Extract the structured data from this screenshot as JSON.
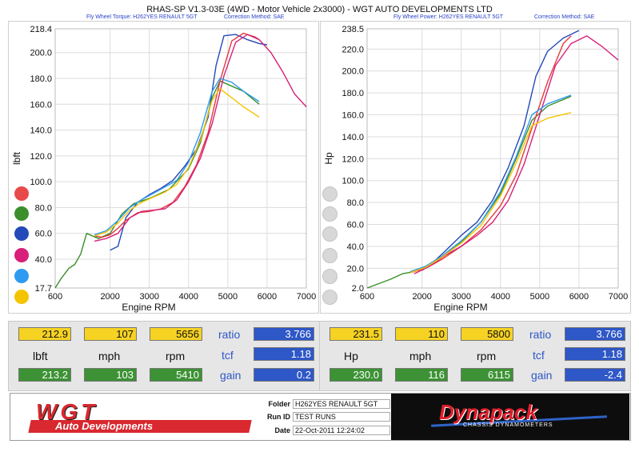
{
  "header": {
    "title": "RHAS-SP V1.3-03E  (4WD - Motor Vehicle 2x3000) - WGT AUTO DEVELOPMENTS LTD",
    "left_sub_a": "Fly Wheel Torque: H262YES RENAULT 5GT",
    "left_sub_b": "Correction Method: SAE",
    "right_sub_a": "Fly Wheel Power: H262YES RENAULT 5GT",
    "right_sub_b": "Correction Method: SAE"
  },
  "colors": {
    "red": "#e53a3a",
    "green": "#3a8f2b",
    "blue": "#2449b8",
    "magenta": "#d81f7a",
    "cyan": "#2f9bf0",
    "yellow": "#f5c400"
  },
  "chart_data": [
    {
      "type": "line",
      "xlabel": "Engine RPM",
      "ylabel": "lbft",
      "xlim": [
        600,
        7000
      ],
      "ylim": [
        17.7,
        218.4
      ],
      "x_ticks": [
        "600",
        "2000",
        "3000",
        "4000",
        "5000",
        "6000",
        "7000"
      ],
      "x_tick_values": [
        600,
        2000,
        3000,
        4000,
        5000,
        6000,
        7000
      ],
      "y_ticks": [
        "218.4",
        "200.0",
        "180.0",
        "160.0",
        "140.0",
        "120.0",
        "100.0",
        "80.0",
        "60.0",
        "40.0",
        "17.7"
      ],
      "y_tick_values": [
        218.4,
        200,
        180,
        160,
        140,
        120,
        100,
        80,
        60,
        40,
        17.7
      ],
      "grid": true,
      "series": [
        {
          "color": "#2449b8",
          "x": [
            2000,
            2200,
            2400,
            2700,
            3000,
            3300,
            3600,
            3900,
            4200,
            4500,
            4700,
            4900,
            5200,
            5500,
            5800,
            6000
          ],
          "y": [
            47,
            50,
            72,
            84,
            90,
            95,
            101,
            112,
            125,
            150,
            190,
            213,
            214,
            210,
            207,
            206
          ]
        },
        {
          "color": "#3a8f2b",
          "x": [
            600,
            750,
            950,
            1100,
            1250,
            1400,
            1700,
            2000,
            2300,
            2600,
            3000,
            3500,
            4000,
            4300,
            4600,
            4800,
            5100,
            5400,
            5800
          ],
          "y": [
            17.7,
            25,
            33,
            36,
            44,
            60,
            56,
            60,
            75,
            83,
            87,
            94,
            110,
            130,
            165,
            178,
            174,
            170,
            160
          ]
        },
        {
          "color": "#e53a3a",
          "x": [
            1600,
            1800,
            2000,
            2200,
            2400,
            2700,
            3000,
            3300,
            3600,
            3900,
            4200,
            4500,
            4800,
            5100,
            5400,
            5700,
            5800
          ],
          "y": [
            58,
            57,
            59,
            64,
            70,
            76,
            77,
            79,
            84,
            96,
            113,
            138,
            178,
            209,
            215,
            212,
            210
          ]
        },
        {
          "color": "#d81f7a",
          "x": [
            1600,
            1900,
            2200,
            2500,
            2800,
            3100,
            3400,
            3700,
            4000,
            4300,
            4600,
            4900,
            5200,
            5500,
            5800,
            6100,
            6400,
            6700,
            7000
          ],
          "y": [
            54,
            56,
            60,
            72,
            77,
            78,
            79,
            86,
            100,
            118,
            145,
            182,
            208,
            214,
            210,
            200,
            185,
            168,
            158
          ]
        },
        {
          "color": "#2f9bf0",
          "x": [
            1600,
            1900,
            2200,
            2500,
            2800,
            3100,
            3400,
            3700,
            4000,
            4300,
            4600,
            4800,
            5100,
            5400,
            5800
          ],
          "y": [
            59,
            62,
            70,
            80,
            86,
            91,
            96,
            101,
            115,
            138,
            170,
            180,
            177,
            170,
            162
          ]
        },
        {
          "color": "#f5c400",
          "x": [
            1600,
            1900,
            2200,
            2500,
            2800,
            3100,
            3400,
            3700,
            4000,
            4300,
            4600,
            4800,
            5100,
            5400,
            5800
          ],
          "y": [
            58,
            61,
            68,
            78,
            84,
            88,
            92,
            98,
            111,
            132,
            163,
            172,
            165,
            158,
            150
          ]
        }
      ]
    },
    {
      "type": "line",
      "xlabel": "Engine RPM",
      "ylabel": "Hp",
      "xlim": [
        600,
        7000
      ],
      "ylim": [
        2.0,
        238.5
      ],
      "x_ticks": [
        "600",
        "2000",
        "3000",
        "4000",
        "5000",
        "6000",
        "7000"
      ],
      "x_tick_values": [
        600,
        2000,
        3000,
        4000,
        5000,
        6000,
        7000
      ],
      "y_ticks": [
        "238.5",
        "220.0",
        "200.0",
        "180.0",
        "160.0",
        "140.0",
        "120.0",
        "100.0",
        "80.0",
        "60.0",
        "40.0",
        "20.0",
        "2.0"
      ],
      "y_tick_values": [
        238.5,
        220,
        200,
        180,
        160,
        140,
        120,
        100,
        80,
        60,
        40,
        20,
        2
      ],
      "grid": true,
      "series": [
        {
          "color": "#2449b8",
          "x": [
            2000,
            2300,
            2600,
            3000,
            3400,
            3800,
            4200,
            4600,
            4900,
            5200,
            5600,
            6000
          ],
          "y": [
            18,
            26,
            36,
            50,
            62,
            82,
            112,
            150,
            195,
            218,
            230,
            237
          ]
        },
        {
          "color": "#3a8f2b",
          "x": [
            600,
            900,
            1200,
            1500,
            1800,
            2100,
            2500,
            3000,
            3500,
            4000,
            4400,
            4800,
            5200,
            5800
          ],
          "y": [
            2,
            6,
            10,
            15,
            17,
            22,
            30,
            44,
            62,
            88,
            120,
            155,
            168,
            177
          ]
        },
        {
          "color": "#e53a3a",
          "x": [
            1700,
            2100,
            2500,
            3000,
            3500,
            4000,
            4400,
            4800,
            5200,
            5600,
            5800
          ],
          "y": [
            16,
            20,
            28,
            40,
            55,
            77,
            105,
            148,
            190,
            225,
            232
          ]
        },
        {
          "color": "#d81f7a",
          "x": [
            1800,
            2200,
            2600,
            3000,
            3400,
            3800,
            4200,
            4600,
            5000,
            5400,
            5800,
            6200,
            6600,
            7000
          ],
          "y": [
            15,
            22,
            32,
            40,
            50,
            62,
            82,
            115,
            160,
            205,
            225,
            232,
            222,
            210
          ]
        },
        {
          "color": "#2f9bf0",
          "x": [
            1700,
            2100,
            2500,
            3000,
            3500,
            4000,
            4400,
            4800,
            5200,
            5800
          ],
          "y": [
            17,
            22,
            31,
            45,
            62,
            90,
            122,
            160,
            170,
            178
          ]
        },
        {
          "color": "#f5c400",
          "x": [
            1700,
            2100,
            2500,
            3000,
            3500,
            4000,
            4400,
            4800,
            5200,
            5800
          ],
          "y": [
            16,
            21,
            30,
            43,
            59,
            86,
            116,
            150,
            157,
            162
          ]
        }
      ]
    }
  ],
  "readout_left": {
    "top": [
      "212.9",
      "107",
      "5656"
    ],
    "labels": [
      "lbft",
      "mph",
      "rpm"
    ],
    "bottom": [
      "213.2",
      "103",
      "5410"
    ],
    "side_labels": [
      "ratio",
      "tcf",
      "gain"
    ],
    "side_values": [
      "3.766",
      "1.18",
      "0.2"
    ]
  },
  "readout_right": {
    "top": [
      "231.5",
      "110",
      "5800"
    ],
    "labels": [
      "Hp",
      "mph",
      "rpm"
    ],
    "bottom": [
      "230.0",
      "116",
      "6115"
    ],
    "side_labels": [
      "ratio",
      "tcf",
      "gain"
    ],
    "side_values": [
      "3.766",
      "1.18",
      "-2.4"
    ]
  },
  "footer": {
    "wgt_logo": "WGT",
    "wgt_sub": "Auto Developments",
    "folder_label": "Folder",
    "folder_value": "H262YES RENAULT 5GT",
    "run_label": "Run ID",
    "run_value": "TEST RUNS",
    "date_label": "Date",
    "date_value": "22-Oct-2011   12:24:02",
    "dyno_logo": "Dynapack",
    "dyno_sub": "CHASSIS DYNAMOMETERS"
  }
}
